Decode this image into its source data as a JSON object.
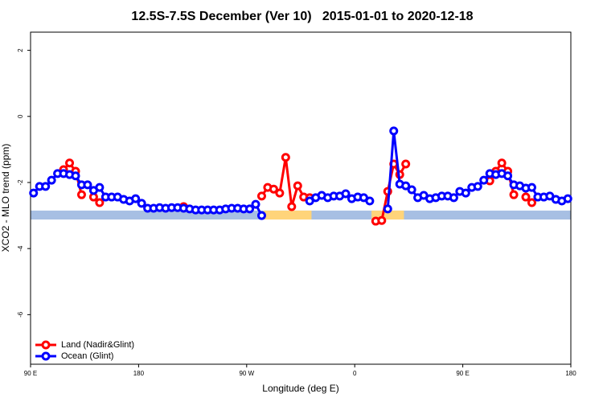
{
  "chart_data": {
    "type": "line",
    "title": "12.5S-7.5S December (Ver 10)   2015-01-01 to 2020-12-18",
    "xlabel": "Longitude (deg E)",
    "ylabel": "XCO2 - MLO trend (ppm)",
    "xlim": [
      90,
      540
    ],
    "ylim": [
      -7.5,
      2.55
    ],
    "xticks": [
      {
        "value": 90,
        "label": "90 E"
      },
      180,
      {
        "value": 270,
        "label": "90 W"
      },
      {
        "value": 360,
        "label": "0"
      },
      {
        "value": 450,
        "label": "90 E"
      },
      {
        "value": 540,
        "label": "180"
      }
    ],
    "yticks": [
      -6,
      -4,
      -2,
      0,
      2
    ],
    "legend": "bottom-left",
    "mask": {
      "ylim": [
        -3.12,
        -2.85
      ],
      "ocean_color": "#a7bfe3",
      "land_color": "#ffd47a",
      "land": [
        [
          284,
          324
        ],
        [
          374,
          401
        ]
      ]
    },
    "x": [
      92.5,
      97.5,
      102.5,
      107.5,
      112.5,
      117.5,
      122.5,
      127.5,
      132.5,
      137.5,
      142.5,
      147.5,
      152.5,
      157.5,
      162.5,
      167.5,
      172.5,
      177.5,
      182.5,
      187.5,
      192.5,
      197.5,
      202.5,
      207.5,
      212.5,
      217.5,
      222.5,
      227.5,
      232.5,
      237.5,
      242.5,
      247.5,
      252.5,
      257.5,
      262.5,
      267.5,
      272.5,
      277.5,
      282.5,
      287.5,
      292.5,
      297.5,
      302.5,
      307.5,
      312.5,
      317.5,
      322.5,
      327.5,
      332.5,
      337.5,
      342.5,
      347.5,
      352.5,
      357.5,
      362.5,
      367.5,
      372.5,
      377.5,
      382.5,
      387.5,
      392.5,
      397.5,
      402.5,
      407.5,
      412.5,
      417.5,
      422.5,
      427.5,
      432.5,
      437.5,
      442.5,
      447.5,
      452.5,
      457.5,
      462.5,
      467.5,
      472.5,
      477.5,
      482.5,
      487.5,
      492.5,
      497.5,
      502.5,
      507.5,
      512.5,
      517.5,
      522.5,
      527.5,
      532.5,
      537.5
    ],
    "series": [
      {
        "name": "Land (Nadir&Glint)",
        "color": "#ff0000",
        "values": [
          null,
          null,
          null,
          null,
          null,
          -1.61,
          -1.41,
          -1.66,
          -2.37,
          null,
          -2.44,
          -2.61,
          null,
          null,
          null,
          null,
          null,
          null,
          null,
          null,
          null,
          null,
          null,
          null,
          null,
          -2.73,
          null,
          null,
          null,
          null,
          null,
          null,
          null,
          null,
          null,
          null,
          null,
          null,
          -2.41,
          -2.15,
          -2.2,
          -2.32,
          -1.24,
          -2.73,
          -2.1,
          -2.44,
          -2.46,
          null,
          null,
          null,
          null,
          null,
          null,
          null,
          null,
          null,
          null,
          -3.17,
          -3.15,
          -2.27,
          -1.44,
          -1.76,
          -1.44,
          null,
          null,
          null,
          null,
          null,
          null,
          null,
          null,
          null,
          null,
          null,
          null,
          null,
          -1.95,
          -1.66,
          -1.41,
          -1.66,
          -2.37,
          null,
          -2.44,
          -2.61,
          null,
          null,
          null,
          null,
          null,
          null
        ]
      },
      {
        "name": "Ocean (Glint)",
        "color": "#0000ff",
        "values": [
          -2.32,
          -2.12,
          -2.12,
          -1.93,
          -1.73,
          -1.73,
          -1.76,
          -1.8,
          -2.07,
          -2.07,
          -2.24,
          -2.15,
          -2.44,
          -2.44,
          -2.44,
          -2.51,
          -2.56,
          -2.49,
          -2.63,
          -2.78,
          -2.78,
          -2.76,
          -2.78,
          -2.76,
          -2.76,
          -2.78,
          -2.8,
          -2.83,
          -2.83,
          -2.83,
          -2.83,
          -2.83,
          -2.8,
          -2.78,
          -2.78,
          -2.8,
          -2.8,
          -2.66,
          -3.0,
          null,
          null,
          null,
          null,
          null,
          null,
          null,
          -2.56,
          -2.46,
          -2.39,
          -2.46,
          -2.41,
          -2.41,
          -2.34,
          -2.49,
          -2.44,
          -2.46,
          -2.56,
          null,
          null,
          -2.8,
          -0.44,
          -2.05,
          -2.1,
          -2.22,
          -2.46,
          -2.39,
          -2.49,
          -2.46,
          -2.41,
          -2.41,
          -2.46,
          -2.27,
          -2.32,
          -2.15,
          -2.12,
          -1.93,
          -1.73,
          -1.76,
          -1.73,
          -1.8,
          -2.07,
          -2.1,
          -2.17,
          -2.15,
          -2.44,
          -2.44,
          -2.41,
          -2.51,
          -2.56,
          -2.49
        ]
      }
    ]
  }
}
